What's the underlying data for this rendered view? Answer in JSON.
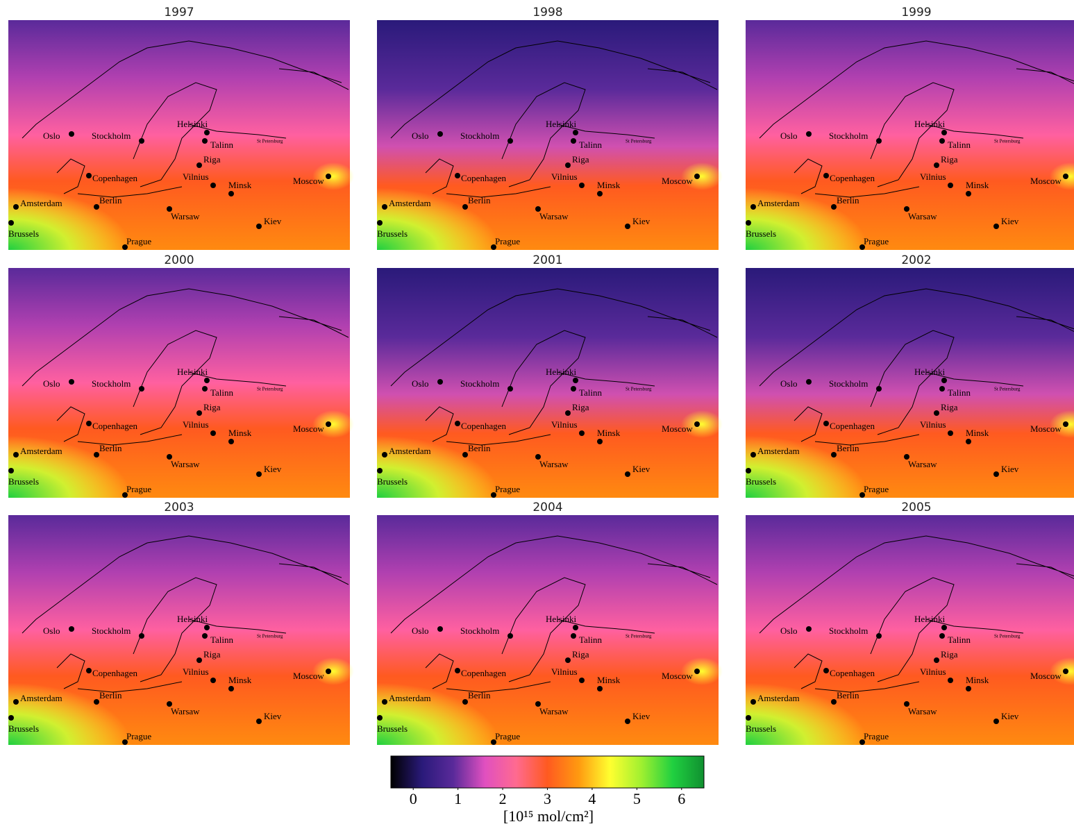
{
  "panels": [
    {
      "title": "1997"
    },
    {
      "title": "1998"
    },
    {
      "title": "1999"
    },
    {
      "title": "2000"
    },
    {
      "title": "2001"
    },
    {
      "title": "2002"
    },
    {
      "title": "2003"
    },
    {
      "title": "2004"
    },
    {
      "title": "2005"
    }
  ],
  "cities": [
    "Oslo",
    "Stockholm",
    "Helsinki",
    "Talinn",
    "St Petersburg",
    "Riga",
    "Copenhagen",
    "Vilnius",
    "Minsk",
    "Moscow",
    "Amsterdam",
    "Berlin",
    "Warsaw",
    "Kiev",
    "Brussels",
    "Prague"
  ],
  "colorbar": {
    "xlim": [
      -0.5,
      6.5
    ],
    "xticks": [
      0,
      1,
      2,
      3,
      4,
      5,
      6
    ],
    "label": "[10¹⁵ mol/cm²]",
    "colors": [
      "#000000",
      "#2a1a7a",
      "#5a2a9a",
      "#e050c0",
      "#ff6a90",
      "#ff5a20",
      "#ff9a10",
      "#ffff30",
      "#a0f030",
      "#20d040",
      "#109030"
    ]
  }
}
